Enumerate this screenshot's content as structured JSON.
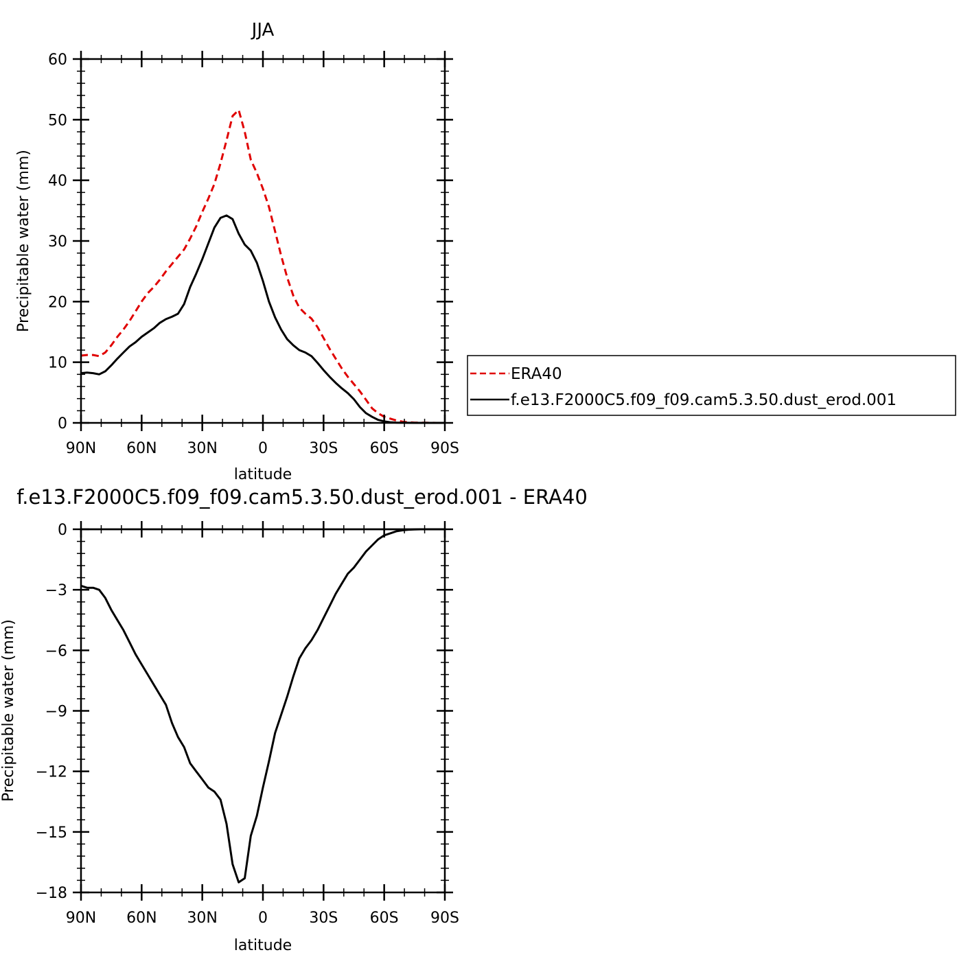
{
  "chart_data": [
    {
      "type": "line",
      "title": "JJA",
      "xlabel": "latitude",
      "ylabel": "Precipitable water (mm)",
      "xlim": [
        90,
        -90
      ],
      "ylim": [
        0,
        60
      ],
      "x_tick_values": [
        90,
        60,
        30,
        0,
        -30,
        -60,
        -90
      ],
      "x_tick_labels": [
        "90N",
        "60N",
        "30N",
        "0",
        "30S",
        "60S",
        "90S"
      ],
      "y_tick_values": [
        0,
        10,
        20,
        30,
        40,
        50,
        60
      ],
      "y_tick_labels": [
        "0",
        "10",
        "20",
        "30",
        "40",
        "50",
        "60"
      ],
      "x": [
        90,
        87,
        84,
        81,
        78,
        75,
        72,
        69,
        66,
        63,
        60,
        57,
        54,
        51,
        48,
        45,
        42,
        39,
        36,
        33,
        30,
        27,
        24,
        21,
        18,
        15,
        12,
        9,
        6,
        3,
        0,
        -3,
        -6,
        -9,
        -12,
        -15,
        -18,
        -21,
        -24,
        -27,
        -30,
        -33,
        -36,
        -39,
        -42,
        -45,
        -48,
        -51,
        -54,
        -57,
        -60,
        -63,
        -66,
        -69,
        -72,
        -75,
        -78,
        -81,
        -84,
        -87,
        -90
      ],
      "series": [
        {
          "name": "ERA40",
          "color": "#e00000",
          "dash": "dashed",
          "values": [
            11.1,
            11.2,
            11.2,
            11.0,
            11.6,
            12.8,
            14.2,
            15.4,
            16.8,
            18.4,
            20.0,
            21.4,
            22.4,
            23.6,
            25.0,
            26.2,
            27.4,
            28.6,
            30.4,
            32.4,
            34.8,
            37.0,
            39.4,
            42.8,
            46.6,
            50.6,
            51.6,
            48.0,
            43.4,
            41.2,
            38.6,
            35.6,
            31.6,
            27.6,
            24.0,
            21.0,
            19.0,
            18.0,
            17.2,
            15.8,
            14.0,
            12.2,
            10.6,
            9.0,
            7.6,
            6.4,
            5.2,
            3.8,
            2.4,
            1.6,
            1.0,
            0.7,
            0.4,
            0.2,
            0.1,
            0.05,
            0.03,
            0.02,
            0.01,
            0.0,
            0.0
          ]
        },
        {
          "name": "f.e13.F2000C5.f09_f09.cam5.3.50.dust_erod.001",
          "color": "#000000",
          "dash": "solid",
          "values": [
            8.2,
            8.3,
            8.2,
            8.0,
            8.5,
            9.5,
            10.6,
            11.6,
            12.6,
            13.3,
            14.2,
            14.9,
            15.6,
            16.5,
            17.1,
            17.5,
            18.0,
            19.6,
            22.4,
            24.6,
            27.0,
            29.6,
            32.2,
            33.8,
            34.2,
            33.6,
            31.2,
            29.4,
            28.4,
            26.4,
            23.4,
            20.0,
            17.4,
            15.4,
            13.8,
            12.8,
            12.0,
            11.6,
            11.0,
            9.9,
            8.7,
            7.6,
            6.6,
            5.7,
            4.9,
            3.9,
            2.6,
            1.6,
            1.0,
            0.5,
            0.25,
            0.1,
            0.05,
            0.02,
            0.01,
            0.0,
            0.0,
            0.0,
            0.0,
            0.0,
            0.0
          ]
        }
      ],
      "legend": {
        "position": "right",
        "entries": [
          "ERA40",
          "f.e13.F2000C5.f09_f09.cam5.3.50.dust_erod.001"
        ]
      }
    },
    {
      "type": "line",
      "title": "f.e13.F2000C5.f09_f09.cam5.3.50.dust_erod.001 - ERA40",
      "xlabel": "latitude",
      "ylabel": "Precipitable water (mm)",
      "xlim": [
        90,
        -90
      ],
      "ylim": [
        -18,
        0
      ],
      "x_tick_values": [
        90,
        60,
        30,
        0,
        -30,
        -60,
        -90
      ],
      "x_tick_labels": [
        "90N",
        "60N",
        "30N",
        "0",
        "30S",
        "60S",
        "90S"
      ],
      "y_tick_values": [
        0,
        -3,
        -6,
        -9,
        -12,
        -15,
        -18
      ],
      "y_tick_labels": [
        "0",
        "−3",
        "−6",
        "−9",
        "−12",
        "−15",
        "−18"
      ],
      "x": [
        90,
        87,
        84,
        81,
        78,
        75,
        72,
        69,
        66,
        63,
        60,
        57,
        54,
        51,
        48,
        45,
        42,
        39,
        36,
        33,
        30,
        27,
        24,
        21,
        18,
        15,
        12,
        9,
        6,
        3,
        0,
        -3,
        -6,
        -9,
        -12,
        -15,
        -18,
        -21,
        -24,
        -27,
        -30,
        -33,
        -36,
        -39,
        -42,
        -45,
        -48,
        -51,
        -54,
        -57,
        -60,
        -63,
        -66,
        -69,
        -72,
        -75,
        -78,
        -81,
        -84,
        -87,
        -90
      ],
      "series": [
        {
          "name": "f.e13.F2000C5.f09_f09.cam5.3.50.dust_erod.001 - ERA40",
          "color": "#000000",
          "dash": "solid",
          "values": [
            -2.8,
            -2.9,
            -2.9,
            -3.0,
            -3.4,
            -4.0,
            -4.5,
            -5.0,
            -5.6,
            -6.2,
            -6.7,
            -7.2,
            -7.7,
            -8.2,
            -8.7,
            -9.6,
            -10.3,
            -10.8,
            -11.6,
            -12.0,
            -12.4,
            -12.8,
            -13.0,
            -13.4,
            -14.6,
            -16.6,
            -17.5,
            -17.3,
            -15.2,
            -14.2,
            -12.8,
            -11.5,
            -10.1,
            -9.2,
            -8.3,
            -7.3,
            -6.4,
            -5.9,
            -5.5,
            -5.0,
            -4.4,
            -3.8,
            -3.2,
            -2.7,
            -2.2,
            -1.9,
            -1.5,
            -1.1,
            -0.8,
            -0.5,
            -0.3,
            -0.2,
            -0.1,
            -0.05,
            -0.02,
            -0.01,
            0.0,
            0.0,
            0.0,
            0.0,
            0.0
          ]
        }
      ]
    }
  ]
}
